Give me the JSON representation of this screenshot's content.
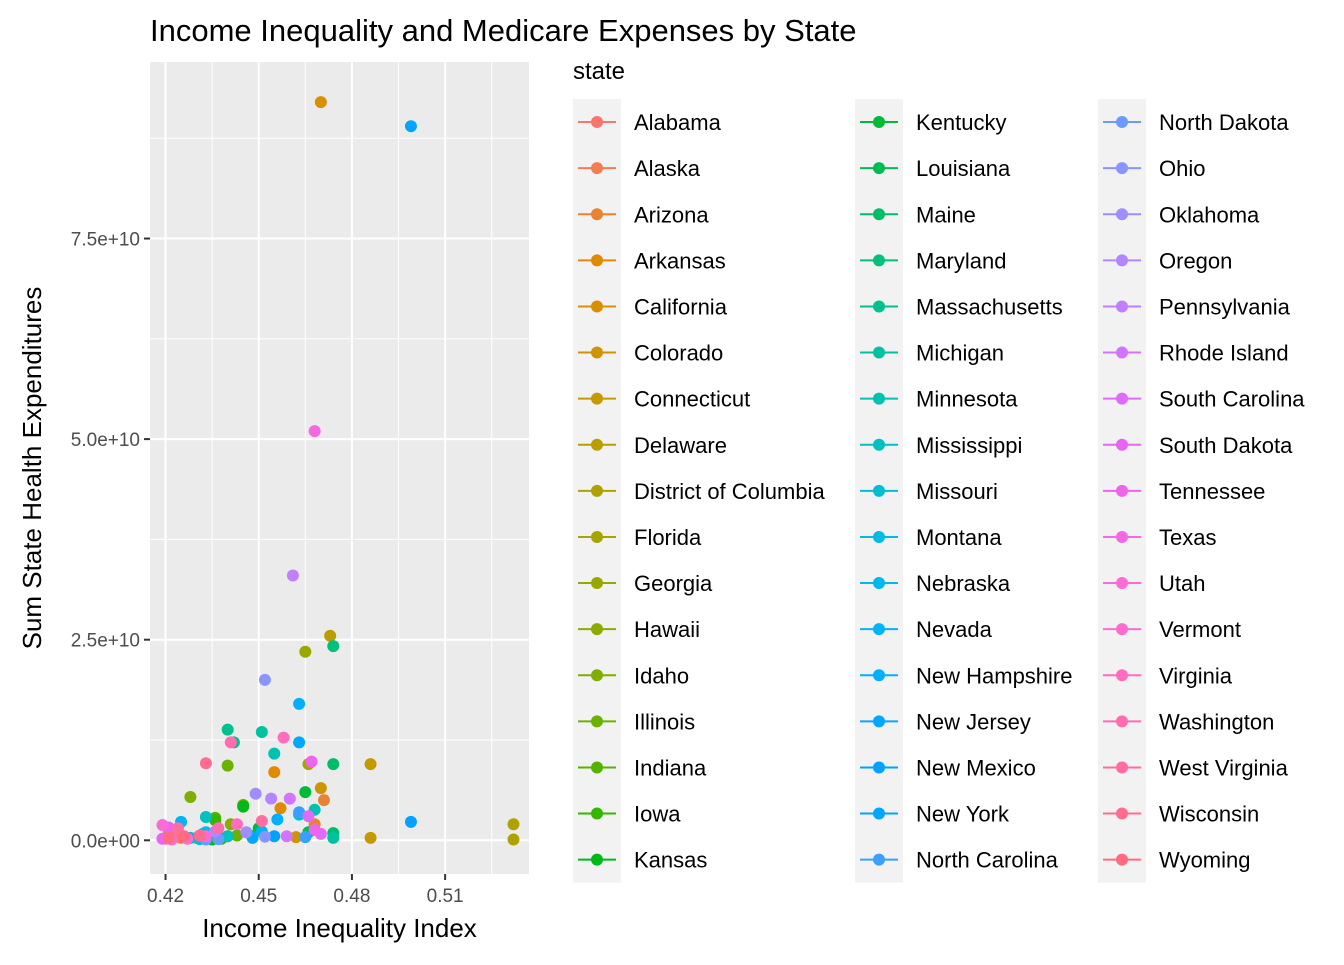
{
  "chart_data": {
    "type": "scatter",
    "title": "Income Inequality and Medicare Expenses by State",
    "xlabel": "Income Inequality Index",
    "ylabel": "Sum State Health Expenditures",
    "xlim": [
      0.415,
      0.537
    ],
    "ylim": [
      -4200000000.0,
      97000000000.0
    ],
    "x_ticks": [
      0.42,
      0.45,
      0.48,
      0.51
    ],
    "x_tick_labels": [
      "0.42",
      "0.45",
      "0.48",
      "0.51"
    ],
    "y_ticks": [
      0,
      25000000000.0,
      50000000000.0,
      75000000000.0
    ],
    "y_tick_labels": [
      "0.0e+00",
      "2.5e+10",
      "5.0e+10",
      "7.5e+10"
    ],
    "grid": true,
    "legend": {
      "title": "state",
      "placement": "right",
      "columns": 3
    },
    "series": [
      {
        "name": "Alabama",
        "color": "#F8766D",
        "points": [
          [
            0.421,
            1200000000.0
          ],
          [
            0.423,
            800000000.0
          ]
        ]
      },
      {
        "name": "Alaska",
        "color": "#F27D52",
        "points": [
          [
            0.42,
            200000000.0
          ],
          [
            0.425,
            300000000.0
          ]
        ]
      },
      {
        "name": "Arizona",
        "color": "#EA8331",
        "points": [
          [
            0.471,
            5000000000.0
          ],
          [
            0.468,
            2000000000.0
          ]
        ]
      },
      {
        "name": "Arkansas",
        "color": "#E18A00",
        "points": [
          [
            0.455,
            8500000000.0
          ],
          [
            0.457,
            4000000000.0
          ]
        ]
      },
      {
        "name": "California",
        "color": "#D89000",
        "points": [
          [
            0.47,
            92000000000.0
          ]
        ]
      },
      {
        "name": "Colorado",
        "color": "#CE9500",
        "points": [
          [
            0.47,
            6500000000.0
          ],
          [
            0.462,
            400000000.0
          ]
        ]
      },
      {
        "name": "Connecticut",
        "color": "#C49A00",
        "points": [
          [
            0.486,
            9500000000.0
          ],
          [
            0.486,
            300000000.0
          ]
        ]
      },
      {
        "name": "Delaware",
        "color": "#BB9D00",
        "points": [
          [
            0.473,
            25500000000.0
          ]
        ]
      },
      {
        "name": "District of Columbia",
        "color": "#B0A100",
        "points": [
          [
            0.532,
            2000000000.0
          ],
          [
            0.532,
            100000000.0
          ]
        ]
      },
      {
        "name": "Florida",
        "color": "#A5A400",
        "points": [
          [
            0.466,
            9500000000.0
          ],
          [
            0.466,
            1000000000.0
          ]
        ]
      },
      {
        "name": "Georgia",
        "color": "#99A800",
        "points": [
          [
            0.465,
            23500000000.0
          ]
        ]
      },
      {
        "name": "Hawaii",
        "color": "#8CAB00",
        "points": [
          [
            0.441,
            2000000000.0
          ],
          [
            0.44,
            500000000.0
          ]
        ]
      },
      {
        "name": "Idaho",
        "color": "#7DAE00",
        "points": [
          [
            0.428,
            5400000000.0
          ],
          [
            0.43,
            300000000.0
          ]
        ]
      },
      {
        "name": "Illinois",
        "color": "#6BB100",
        "points": [
          [
            0.44,
            9300000000.0
          ],
          [
            0.443,
            600000000.0
          ]
        ]
      },
      {
        "name": "Indiana",
        "color": "#55B300",
        "points": [
          [
            0.445,
            4400000000.0
          ],
          [
            0.436,
            2800000000.0
          ]
        ]
      },
      {
        "name": "Iowa",
        "color": "#35B600",
        "points": [
          [
            0.436,
            2500000000.0
          ],
          [
            0.438,
            200000000.0
          ]
        ]
      },
      {
        "name": "Kansas",
        "color": "#00B818",
        "points": [
          [
            0.445,
            4200000000.0
          ],
          [
            0.435,
            100000000.0
          ]
        ]
      },
      {
        "name": "Kentucky",
        "color": "#00BA38",
        "points": [
          [
            0.465,
            6000000000.0
          ],
          [
            0.45,
            1500000000.0
          ]
        ]
      },
      {
        "name": "Louisiana",
        "color": "#00BC51",
        "points": [
          [
            0.466,
            1000000000.0
          ],
          [
            0.448,
            500000000.0
          ]
        ]
      },
      {
        "name": "Maine",
        "color": "#00BE67",
        "points": [
          [
            0.474,
            9500000000.0
          ],
          [
            0.474,
            900000000.0
          ]
        ]
      },
      {
        "name": "Maryland",
        "color": "#00C07B",
        "points": [
          [
            0.474,
            24200000000.0
          ]
        ]
      },
      {
        "name": "Massachusetts",
        "color": "#00C08E",
        "points": [
          [
            0.442,
            12200000000.0
          ],
          [
            0.44,
            13800000000.0
          ]
        ]
      },
      {
        "name": "Michigan",
        "color": "#00C1A0",
        "points": [
          [
            0.451,
            13500000000.0
          ],
          [
            0.474,
            300000000.0
          ]
        ]
      },
      {
        "name": "Minnesota",
        "color": "#00C1B2",
        "points": [
          [
            0.455,
            10800000000.0
          ],
          [
            0.468,
            3800000000.0
          ]
        ]
      },
      {
        "name": "Mississippi",
        "color": "#00C0C2",
        "points": [
          [
            0.433,
            2900000000.0
          ],
          [
            0.44,
            500000000.0
          ]
        ]
      },
      {
        "name": "Missouri",
        "color": "#00BED2",
        "points": [
          [
            0.463,
            3200000000.0
          ],
          [
            0.432,
            800000000.0
          ]
        ]
      },
      {
        "name": "Montana",
        "color": "#00BCE0",
        "points": [
          [
            0.433,
            1000000000.0
          ],
          [
            0.431,
            150000000.0
          ]
        ]
      },
      {
        "name": "Nebraska",
        "color": "#00B8EC",
        "points": [
          [
            0.428,
            300000000.0
          ],
          [
            0.433,
            200000000.0
          ]
        ]
      },
      {
        "name": "Nevada",
        "color": "#00B4F6",
        "points": [
          [
            0.425,
            2300000000.0
          ],
          [
            0.451,
            1100000000.0
          ]
        ]
      },
      {
        "name": "New Hampshire",
        "color": "#00AFFE",
        "points": [
          [
            0.463,
            17000000000.0
          ],
          [
            0.456,
            2600000000.0
          ]
        ]
      },
      {
        "name": "New Jersey",
        "color": "#00A9FF",
        "points": [
          [
            0.463,
            12200000000.0
          ],
          [
            0.448,
            300000000.0
          ]
        ]
      },
      {
        "name": "New Mexico",
        "color": "#00A2FF",
        "points": [
          [
            0.499,
            2300000000.0
          ],
          [
            0.455,
            500000000.0
          ]
        ]
      },
      {
        "name": "New York",
        "color": "#00A5FF",
        "points": [
          [
            0.499,
            89000000000.0
          ]
        ]
      },
      {
        "name": "North Carolina",
        "color": "#39A0FF",
        "points": [
          [
            0.463,
            3500000000.0
          ],
          [
            0.465,
            400000000.0
          ]
        ]
      },
      {
        "name": "North Dakota",
        "color": "#6C9BFF",
        "points": [
          [
            0.433,
            100000000.0
          ],
          [
            0.437,
            150000000.0
          ]
        ]
      },
      {
        "name": "Ohio",
        "color": "#8895FF",
        "points": [
          [
            0.452,
            20000000000.0
          ],
          [
            0.452,
            450000000.0
          ]
        ]
      },
      {
        "name": "Oklahoma",
        "color": "#9F8EFF",
        "points": [
          [
            0.449,
            5800000000.0
          ],
          [
            0.446,
            1000000000.0
          ]
        ]
      },
      {
        "name": "Oregon",
        "color": "#B386FF",
        "points": [
          [
            0.454,
            5200000000.0
          ],
          [
            0.436,
            1100000000.0
          ]
        ]
      },
      {
        "name": "Pennsylvania",
        "color": "#C37EFF",
        "points": [
          [
            0.461,
            33000000000.0
          ]
        ]
      },
      {
        "name": "Rhode Island",
        "color": "#D174FF",
        "points": [
          [
            0.46,
            5200000000.0
          ],
          [
            0.459,
            500000000.0
          ]
        ]
      },
      {
        "name": "South Carolina",
        "color": "#DE6BFB",
        "points": [
          [
            0.466,
            3000000000.0
          ],
          [
            0.47,
            800000000.0
          ]
        ]
      },
      {
        "name": "South Dakota",
        "color": "#E865F4",
        "points": [
          [
            0.419,
            200000000.0
          ],
          [
            0.421,
            1600000000.0
          ]
        ]
      },
      {
        "name": "Tennessee",
        "color": "#F064EC",
        "points": [
          [
            0.467,
            9800000000.0
          ],
          [
            0.468,
            1300000000.0
          ]
        ]
      },
      {
        "name": "Texas",
        "color": "#F667E3",
        "points": [
          [
            0.468,
            51000000000.0
          ]
        ]
      },
      {
        "name": "Utah",
        "color": "#FA6BD8",
        "points": [
          [
            0.419,
            1900000000.0
          ],
          [
            0.433,
            500000000.0
          ]
        ]
      },
      {
        "name": "Vermont",
        "color": "#FE6DCD",
        "points": [
          [
            0.422,
            100000000.0
          ],
          [
            0.427,
            200000000.0
          ]
        ]
      },
      {
        "name": "Virginia",
        "color": "#FF6DBF",
        "points": [
          [
            0.458,
            12800000000.0
          ],
          [
            0.443,
            2000000000.0
          ]
        ]
      },
      {
        "name": "Washington",
        "color": "#FF6DB1",
        "points": [
          [
            0.441,
            12200000000.0
          ],
          [
            0.437,
            1500000000.0
          ]
        ]
      },
      {
        "name": "West Virginia",
        "color": "#FF6DA2",
        "points": [
          [
            0.424,
            1500000000.0
          ],
          [
            0.451,
            2400000000.0
          ]
        ]
      },
      {
        "name": "Wisconsin",
        "color": "#FF6C92",
        "points": [
          [
            0.433,
            9600000000.0
          ],
          [
            0.431,
            600000000.0
          ]
        ]
      },
      {
        "name": "Wyoming",
        "color": "#FF6C81",
        "points": [
          [
            0.421,
            300000000.0
          ],
          [
            0.426,
            500000000.0
          ]
        ]
      }
    ]
  }
}
